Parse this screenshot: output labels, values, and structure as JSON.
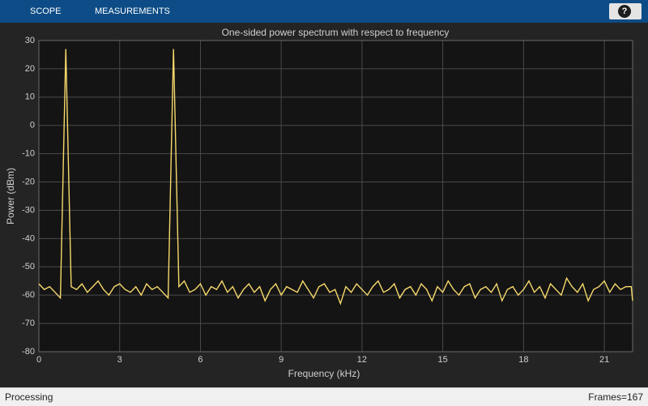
{
  "ui": {
    "tabs": [
      "SCOPE",
      "MEASUREMENTS"
    ],
    "help": "?",
    "status": "Processing",
    "frames": "Frames=167"
  },
  "chart_data": {
    "type": "line",
    "title": "One-sided power spectrum with respect to frequency",
    "xlabel": "Frequency (kHz)",
    "ylabel": "Power (dBm)",
    "color": "#f7d96b",
    "grid": true,
    "xlim": [
      0,
      22.05
    ],
    "xticks": [
      0,
      3,
      6,
      9,
      12,
      15,
      18,
      21
    ],
    "ylim": [
      -80,
      30
    ],
    "yticks": [
      -80,
      -70,
      -60,
      -50,
      -40,
      -30,
      -20,
      -10,
      0,
      10,
      20,
      30
    ],
    "x": [
      0,
      0.2,
      0.4,
      0.6,
      0.8,
      1,
      1.2,
      1.4,
      1.6,
      1.8,
      2,
      2.2,
      2.4,
      2.6,
      2.8,
      3,
      3.2,
      3.4,
      3.6,
      3.8,
      4,
      4.2,
      4.4,
      4.6,
      4.8,
      5,
      5.2,
      5.4,
      5.6,
      5.8,
      6,
      6.2,
      6.4,
      6.6,
      6.8,
      7,
      7.2,
      7.4,
      7.6,
      7.8,
      8,
      8.2,
      8.4,
      8.6,
      8.8,
      9,
      9.2,
      9.4,
      9.6,
      9.8,
      10,
      10.2,
      10.4,
      10.6,
      10.8,
      11,
      11.2,
      11.4,
      11.6,
      11.8,
      12,
      12.2,
      12.4,
      12.6,
      12.8,
      13,
      13.2,
      13.4,
      13.6,
      13.8,
      14,
      14.2,
      14.4,
      14.6,
      14.8,
      15,
      15.2,
      15.4,
      15.6,
      15.8,
      16,
      16.2,
      16.4,
      16.6,
      16.8,
      17,
      17.2,
      17.4,
      17.6,
      17.8,
      18,
      18.2,
      18.4,
      18.6,
      18.8,
      19,
      19.2,
      19.4,
      19.6,
      19.8,
      20,
      20.2,
      20.4,
      20.6,
      20.8,
      21,
      21.2,
      21.4,
      21.6,
      21.8,
      22,
      22.05
    ],
    "values": [
      -56,
      -58,
      -57,
      -59,
      -61,
      27,
      -57,
      -58,
      -56,
      -59,
      -57,
      -55,
      -58,
      -60,
      -57,
      -56,
      -58,
      -59,
      -57,
      -60,
      -56,
      -58,
      -57,
      -59,
      -61,
      27,
      -57,
      -55,
      -59,
      -58,
      -56,
      -60,
      -57,
      -58,
      -55,
      -59,
      -57,
      -61,
      -58,
      -56,
      -59,
      -57,
      -62,
      -58,
      -56,
      -60,
      -57,
      -58,
      -59,
      -55,
      -58,
      -61,
      -57,
      -56,
      -59,
      -58,
      -63,
      -57,
      -59,
      -56,
      -58,
      -60,
      -57,
      -55,
      -59,
      -58,
      -56,
      -61,
      -58,
      -57,
      -60,
      -56,
      -58,
      -62,
      -57,
      -59,
      -55,
      -58,
      -60,
      -57,
      -56,
      -61,
      -58,
      -57,
      -59,
      -56,
      -62,
      -58,
      -57,
      -60,
      -58,
      -55,
      -59,
      -57,
      -61,
      -56,
      -58,
      -60,
      -54,
      -57,
      -59,
      -56,
      -62,
      -58,
      -57,
      -55,
      -59,
      -56,
      -58,
      -57,
      -57,
      -62
    ]
  }
}
